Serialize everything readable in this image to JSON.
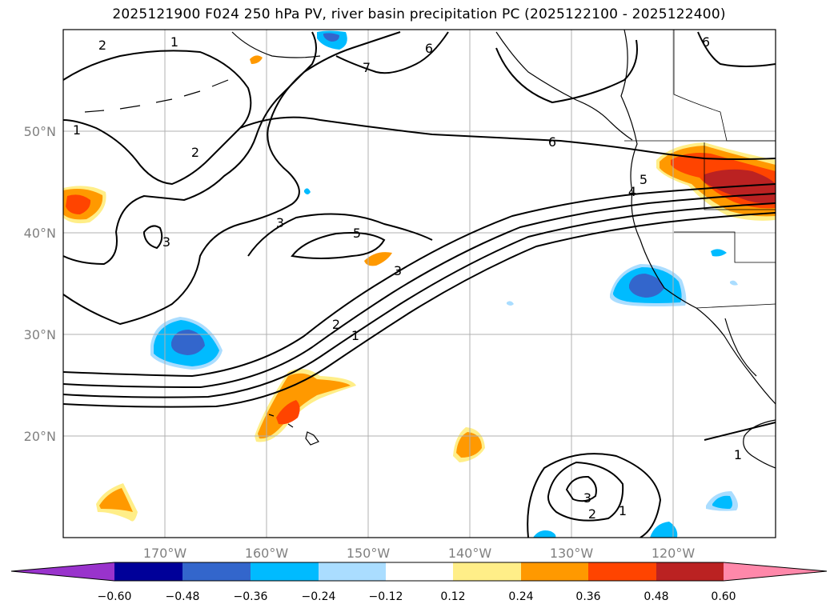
{
  "title": "2025121900 F024 250 hPa PV, river basin precipitation PC (2025122100 - 2025122400)",
  "map": {
    "lat_ticks": [
      "50°N",
      "40°N",
      "30°N",
      "20°N"
    ],
    "lon_ticks": [
      "170°W",
      "160°W",
      "150°W",
      "140°W",
      "130°W",
      "120°W"
    ],
    "extent": {
      "lon_min": -180,
      "lon_max": -110,
      "lat_min": 10,
      "lat_max": 60
    }
  },
  "contour_labels": [
    "2",
    "1",
    "7",
    "6",
    "6",
    "1",
    "2",
    "3",
    "3",
    "5",
    "6",
    "5",
    "4",
    "3",
    "2",
    "1",
    "3",
    "2",
    "1",
    "1"
  ],
  "colorbar": {
    "tick_labels": [
      "−0.60",
      "−0.48",
      "−0.36",
      "−0.24",
      "−0.12",
      "0.12",
      "0.24",
      "0.36",
      "0.48",
      "0.60"
    ],
    "colors": {
      "below": "#9933cc",
      "c1": "#000099",
      "c2": "#3366cc",
      "c3": "#00bbff",
      "c4": "#aaddff",
      "c5": "#ffffff",
      "c6": "#ffee88",
      "c7": "#ff9900",
      "c8": "#ff4400",
      "c9": "#bb2222",
      "above": "#ff88aa"
    }
  }
}
